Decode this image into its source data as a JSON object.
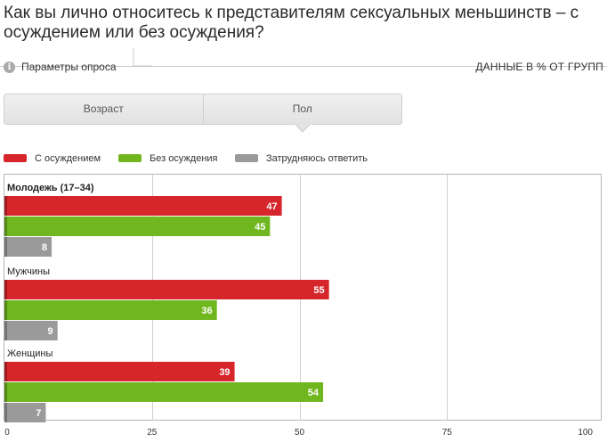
{
  "title": "Как вы лично относитесь к представителям сексуальных меньшинств – с осуждением или без осуждения?",
  "params_label": "Параметры опроса",
  "units_label": "ДАННЫЕ В % ОТ ГРУПП",
  "tabs": [
    {
      "label": "Возраст",
      "active": false
    },
    {
      "label": "Пол",
      "active": true
    }
  ],
  "colors": {
    "condemn": "#d6252b",
    "no_condemn": "#6fb61f",
    "unsure": "#9a9a9a",
    "grid": "#cfcfcf"
  },
  "chart_data": {
    "type": "bar",
    "orientation": "horizontal",
    "categories": [
      "Молодежь (17–34)",
      "Мужчины",
      "Женщины"
    ],
    "series": [
      {
        "name": "С осуждением",
        "color": "#d6252b",
        "values": [
          47,
          55,
          39
        ]
      },
      {
        "name": "Без осуждения",
        "color": "#6fb61f",
        "values": [
          45,
          36,
          54
        ]
      },
      {
        "name": "Затрудняюсь ответить",
        "color": "#9a9a9a",
        "values": [
          8,
          9,
          7
        ]
      }
    ],
    "xlim": [
      0,
      100
    ],
    "ticks": [
      "0",
      "25",
      "50",
      "75",
      "100"
    ],
    "grid": true,
    "legend": "top-left"
  }
}
